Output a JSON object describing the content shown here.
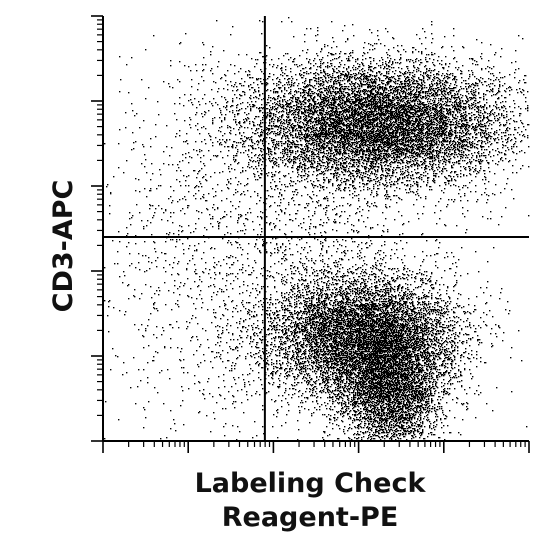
{
  "chart_data": {
    "type": "scatter",
    "xlabel_lines": [
      "Labeling Check",
      "Reagent-PE"
    ],
    "ylabel": "CD3-APC",
    "x_scale": "log",
    "y_scale": "log",
    "x_decades": 5,
    "y_decades": 5,
    "x_range_log10": [
      0,
      5
    ],
    "y_range_log10": [
      0,
      5
    ],
    "quadrant_gate_log10": {
      "x": 1.9,
      "y": 2.4
    },
    "tick_labels_printed": false,
    "grid": false,
    "point_color": "#000000",
    "point_count_estimate": 26000,
    "populations": [
      {
        "name_hint": "CD3-positive, PE-positive",
        "center_log10": [
          3.2,
          3.75
        ],
        "spread_log10": [
          0.75,
          0.35
        ],
        "share": 0.42
      },
      {
        "name_hint": "CD3-negative, PE-positive (upper lobe)",
        "center_log10": [
          3.05,
          1.25
        ],
        "spread_log10": [
          0.55,
          0.35
        ],
        "share": 0.32
      },
      {
        "name_hint": "CD3-negative, PE-positive (lower tail)",
        "center_log10": [
          3.35,
          0.6
        ],
        "spread_log10": [
          0.3,
          0.35
        ],
        "share": 0.16
      },
      {
        "name_hint": "scattered events",
        "center_log10": [
          2.0,
          2.2
        ],
        "spread_log10": [
          1.1,
          1.2
        ],
        "share": 0.1
      }
    ]
  }
}
